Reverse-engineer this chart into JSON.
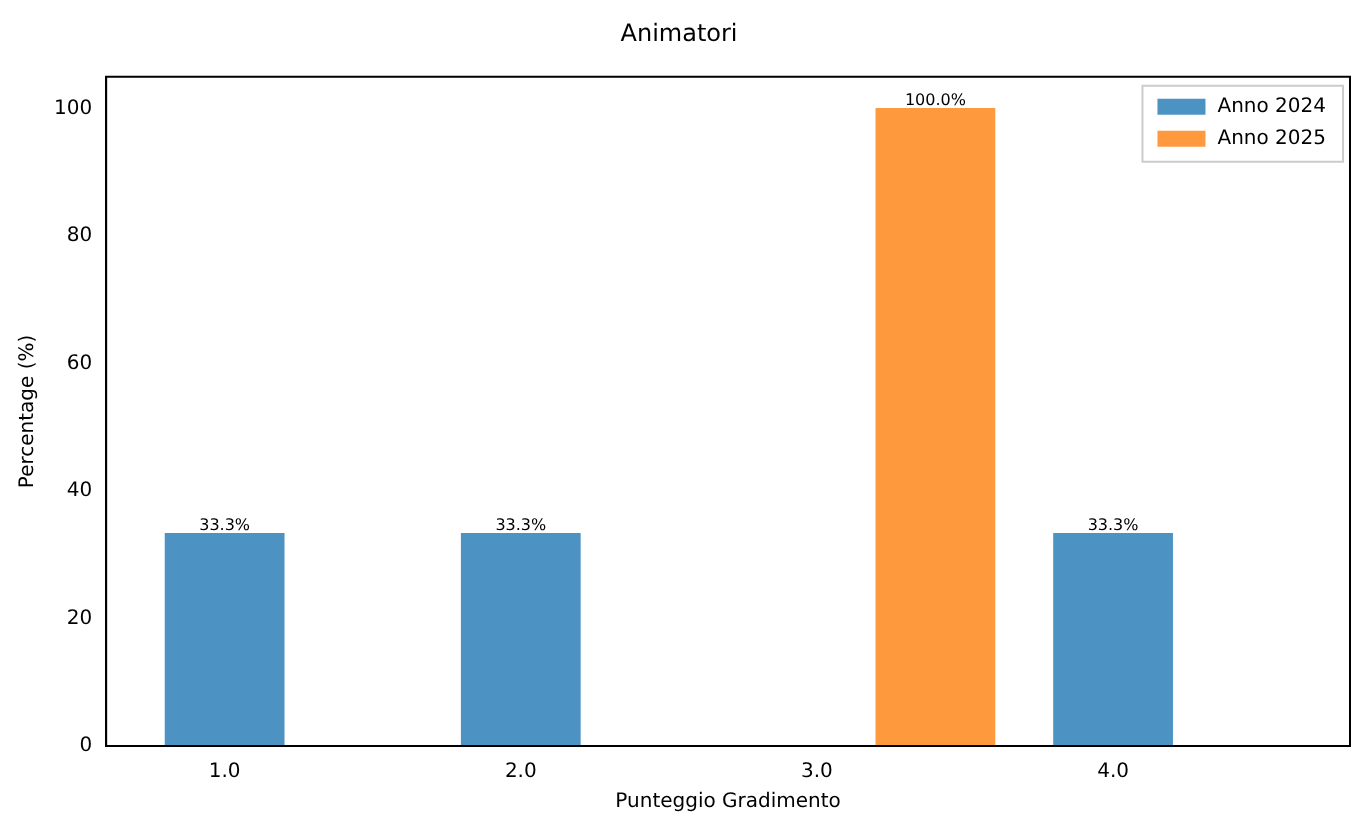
{
  "chart_data": {
    "type": "bar",
    "title": "Animatori",
    "xlabel": "Punteggio Gradimento",
    "ylabel": "Percentage (%)",
    "series": [
      {
        "name": "Anno 2024",
        "color": "#4c92c3",
        "x": [
          1,
          2,
          4
        ],
        "values": [
          33.3,
          33.3,
          33.3
        ],
        "value_labels": [
          "33.3%",
          "33.3%",
          "33.3%"
        ]
      },
      {
        "name": "Anno 2025",
        "color": "#ff993e",
        "x": [
          3.4
        ],
        "values": [
          100
        ],
        "value_labels": [
          "100.0%"
        ]
      }
    ],
    "xlim": [
      0.6,
      4.8
    ],
    "xticks": [
      {
        "value": 1,
        "label": "1.0"
      },
      {
        "value": 2,
        "label": "2.0"
      },
      {
        "value": 3,
        "label": "3.0"
      },
      {
        "value": 4,
        "label": "4.0"
      }
    ],
    "ylim": [
      0,
      105
    ],
    "yticks": [
      0,
      20,
      40,
      60,
      80,
      100
    ],
    "grid": false,
    "legend": "top right"
  }
}
